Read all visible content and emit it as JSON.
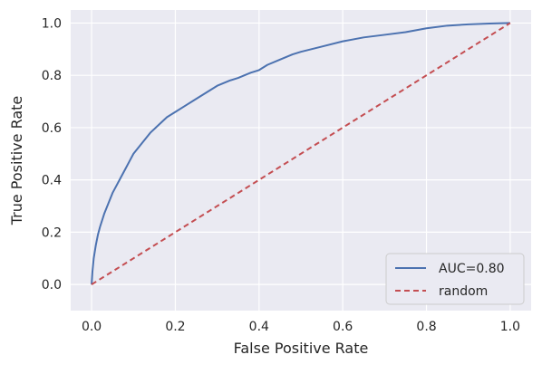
{
  "chart_data": {
    "type": "line",
    "xlabel": "False Positive Rate",
    "ylabel": "True Positive Rate",
    "xlim": [
      -0.05,
      1.05
    ],
    "ylim": [
      -0.1,
      1.05
    ],
    "xticks": [
      0.0,
      0.2,
      0.4,
      0.6,
      0.8,
      1.0
    ],
    "yticks": [
      0.0,
      0.2,
      0.4,
      0.6,
      0.8,
      1.0
    ],
    "xtick_labels": [
      "0.0",
      "0.2",
      "0.4",
      "0.6",
      "0.8",
      "1.0"
    ],
    "ytick_labels": [
      "0.0",
      "0.2",
      "0.4",
      "0.6",
      "0.8",
      "1.0"
    ],
    "grid": true,
    "legend_position": "bottom-right",
    "series": [
      {
        "name": "AUC=0.80",
        "color": "#4c72b0",
        "style": "solid",
        "x": [
          0.0,
          0.002,
          0.005,
          0.01,
          0.015,
          0.02,
          0.03,
          0.04,
          0.05,
          0.06,
          0.07,
          0.08,
          0.09,
          0.1,
          0.12,
          0.14,
          0.16,
          0.18,
          0.2,
          0.22,
          0.25,
          0.28,
          0.3,
          0.33,
          0.35,
          0.38,
          0.4,
          0.42,
          0.45,
          0.48,
          0.5,
          0.55,
          0.6,
          0.65,
          0.7,
          0.75,
          0.8,
          0.85,
          0.9,
          0.95,
          1.0
        ],
        "y": [
          0.0,
          0.05,
          0.1,
          0.15,
          0.19,
          0.22,
          0.27,
          0.31,
          0.35,
          0.38,
          0.41,
          0.44,
          0.47,
          0.5,
          0.54,
          0.58,
          0.61,
          0.64,
          0.66,
          0.68,
          0.71,
          0.74,
          0.76,
          0.78,
          0.79,
          0.81,
          0.82,
          0.84,
          0.86,
          0.88,
          0.89,
          0.91,
          0.93,
          0.945,
          0.955,
          0.965,
          0.98,
          0.99,
          0.995,
          0.998,
          1.0
        ]
      },
      {
        "name": "random",
        "color": "#c44e52",
        "style": "dashed",
        "x": [
          0.0,
          1.0
        ],
        "y": [
          0.0,
          1.0
        ]
      }
    ]
  }
}
